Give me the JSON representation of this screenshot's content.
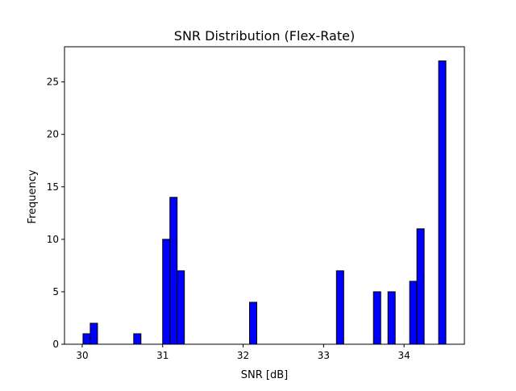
{
  "chart_data": {
    "type": "bar",
    "title": "SNR Distribution (Flex-Rate)",
    "xlabel": "SNR [dB]",
    "ylabel": "Frequency",
    "xlim": [
      29.78,
      34.75
    ],
    "ylim": [
      0,
      28.35
    ],
    "x_ticks": [
      30,
      31,
      32,
      33,
      34
    ],
    "y_ticks": [
      0,
      5,
      10,
      15,
      20,
      25
    ],
    "bin_width": 0.09,
    "bar_color": "#0000ff",
    "edge_color": "#000000",
    "grid": false,
    "legend": "none",
    "bins": [
      {
        "x": 30.01,
        "value": 1
      },
      {
        "x": 30.1,
        "value": 2
      },
      {
        "x": 30.64,
        "value": 1
      },
      {
        "x": 31.0,
        "value": 10
      },
      {
        "x": 31.09,
        "value": 14
      },
      {
        "x": 31.18,
        "value": 7
      },
      {
        "x": 32.08,
        "value": 4
      },
      {
        "x": 33.16,
        "value": 7
      },
      {
        "x": 33.62,
        "value": 5
      },
      {
        "x": 33.8,
        "value": 5
      },
      {
        "x": 34.07,
        "value": 6
      },
      {
        "x": 34.16,
        "value": 11
      },
      {
        "x": 34.43,
        "value": 27
      }
    ]
  }
}
